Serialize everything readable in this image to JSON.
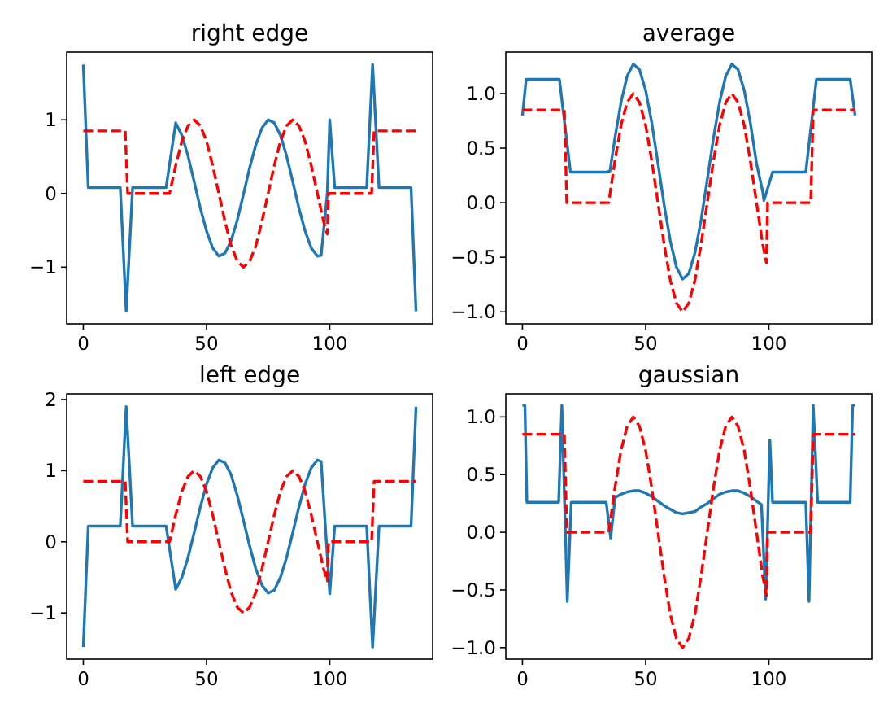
{
  "chart_data": [
    {
      "type": "line",
      "title": "right edge",
      "xlim": [
        -6.75,
        141.75
      ],
      "xticks": [
        0,
        50,
        100
      ],
      "ylim": [
        -1.77,
        1.92
      ],
      "yticks": [
        -1,
        0,
        1
      ],
      "series": [
        {
          "color": "#1f77b4",
          "line_style": "solid",
          "x": [
            0,
            2,
            15,
            17.4,
            20,
            33.6,
            37.5,
            40,
            42.5,
            45,
            47.5,
            50,
            52.5,
            55,
            57.5,
            60,
            62.5,
            65,
            67.5,
            70,
            72.5,
            75,
            77.5,
            80,
            82.5,
            85,
            87.5,
            90,
            92.5,
            95,
            96.5,
            99,
            100,
            102,
            115,
            117.4,
            120,
            133,
            135
          ],
          "values": [
            1.75,
            0.08,
            0.08,
            -1.6,
            0.08,
            0.08,
            0.96,
            0.79,
            0.51,
            0.16,
            -0.2,
            -0.51,
            -0.74,
            -0.85,
            -0.81,
            -0.64,
            -0.36,
            -0.01,
            0.35,
            0.66,
            0.89,
            1.0,
            0.96,
            0.79,
            0.51,
            0.16,
            -0.2,
            -0.51,
            -0.74,
            -0.85,
            -0.84,
            0.0,
            1.0,
            0.08,
            0.08,
            1.75,
            0.08,
            0.08,
            -1.6
          ]
        },
        {
          "color": "#ff0000",
          "line_style": "dashed",
          "x": [
            0,
            17,
            18,
            35,
            37.5,
            40,
            42.5,
            45,
            47.5,
            50,
            52.5,
            55,
            57.5,
            60,
            62.5,
            65,
            67.5,
            70,
            72.5,
            75,
            77.5,
            80,
            82.5,
            85,
            87.5,
            90,
            92.5,
            95,
            97.5,
            99,
            99.5,
            117,
            118,
            135
          ],
          "values": [
            0.85,
            0.85,
            0,
            0,
            0.38,
            0.71,
            0.92,
            1,
            0.92,
            0.71,
            0.38,
            0,
            -0.38,
            -0.71,
            -0.92,
            -1,
            -0.92,
            -0.71,
            -0.38,
            0,
            0.38,
            0.71,
            0.92,
            1,
            0.92,
            0.71,
            0.38,
            0,
            -0.38,
            -0.55,
            0,
            0,
            0.85,
            0.85
          ]
        }
      ]
    },
    {
      "type": "line",
      "title": "average",
      "xlim": [
        -6.75,
        141.75
      ],
      "xticks": [
        0,
        50,
        100
      ],
      "ylim": [
        -1.11,
        1.38
      ],
      "yticks": [
        {
          "value": -1,
          "label": "−1.0"
        },
        {
          "value": -0.5,
          "label": "−0.5"
        },
        {
          "value": 0,
          "label": "0.0"
        },
        {
          "value": 0.5,
          "label": "0.5"
        },
        {
          "value": 1,
          "label": "1.0"
        }
      ],
      "series": [
        {
          "color": "#1f77b4",
          "line_style": "solid",
          "x": [
            0,
            1.5,
            15,
            19.5,
            34,
            35.5,
            37.5,
            40,
            42.5,
            45,
            47.5,
            50,
            52.5,
            55,
            57.5,
            60,
            62.5,
            65,
            67.5,
            70,
            72.5,
            75,
            77.5,
            80,
            82.5,
            85,
            87.5,
            90,
            92.5,
            95,
            97.5,
            98,
            101.5,
            115,
            119.3,
            133,
            135
          ],
          "values": [
            0.8,
            1.13,
            1.13,
            0.28,
            0.28,
            0.29,
            0.59,
            0.92,
            1.16,
            1.27,
            1.22,
            1.03,
            0.73,
            0.36,
            -0.02,
            -0.35,
            -0.59,
            -0.7,
            -0.65,
            -0.46,
            -0.16,
            0.21,
            0.59,
            0.92,
            1.16,
            1.27,
            1.22,
            1.03,
            0.73,
            0.36,
            0.1,
            0.02,
            0.28,
            0.28,
            1.13,
            1.13,
            0.8
          ]
        },
        {
          "color": "#ff0000",
          "line_style": "dashed",
          "x": [
            0,
            17,
            18,
            35,
            37.5,
            40,
            42.5,
            45,
            47.5,
            50,
            52.5,
            55,
            57.5,
            60,
            62.5,
            65,
            67.5,
            70,
            72.5,
            75,
            77.5,
            80,
            82.5,
            85,
            87.5,
            90,
            92.5,
            95,
            97.5,
            99,
            99.5,
            117,
            118,
            135
          ],
          "values": [
            0.85,
            0.85,
            0,
            0,
            0.38,
            0.71,
            0.92,
            1,
            0.92,
            0.71,
            0.38,
            0,
            -0.38,
            -0.71,
            -0.92,
            -1,
            -0.92,
            -0.71,
            -0.38,
            0,
            0.38,
            0.71,
            0.92,
            1,
            0.92,
            0.71,
            0.38,
            0,
            -0.38,
            -0.55,
            0,
            0,
            0.85,
            0.85
          ]
        }
      ]
    },
    {
      "type": "line",
      "title": "left edge",
      "xlim": [
        -6.75,
        141.75
      ],
      "xticks": [
        0,
        50,
        100
      ],
      "ylim": [
        -1.65,
        2.08
      ],
      "yticks": [
        -1,
        0,
        1,
        2
      ],
      "series": [
        {
          "color": "#1f77b4",
          "line_style": "solid",
          "x": [
            0,
            2,
            15,
            17.4,
            20,
            33.6,
            37.5,
            40,
            42.5,
            45,
            47.5,
            50,
            52.5,
            55,
            57.5,
            60,
            62.5,
            65,
            67.5,
            70,
            72.5,
            75,
            77.5,
            80,
            82.5,
            85,
            87.5,
            90,
            92.5,
            95,
            96.5,
            100,
            102,
            115,
            117.4,
            120,
            133,
            135
          ],
          "values": [
            -1.48,
            0.22,
            0.22,
            1.9,
            0.22,
            0.22,
            -0.67,
            -0.5,
            -0.22,
            0.13,
            0.49,
            0.81,
            1.04,
            1.15,
            1.11,
            0.94,
            0.65,
            0.3,
            -0.06,
            -0.38,
            -0.61,
            -0.72,
            -0.68,
            -0.5,
            -0.22,
            0.13,
            0.49,
            0.81,
            1.04,
            1.15,
            1.13,
            -0.73,
            0.22,
            0.22,
            -1.48,
            0.22,
            0.22,
            1.9
          ]
        },
        {
          "color": "#ff0000",
          "line_style": "dashed",
          "x": [
            0,
            17,
            18,
            35,
            37.5,
            40,
            42.5,
            45,
            47.5,
            50,
            52.5,
            55,
            57.5,
            60,
            62.5,
            65,
            67.5,
            70,
            72.5,
            75,
            77.5,
            80,
            82.5,
            85,
            87.5,
            90,
            92.5,
            95,
            97.5,
            99,
            99.5,
            117,
            118,
            135
          ],
          "values": [
            0.85,
            0.85,
            0,
            0,
            0.38,
            0.71,
            0.92,
            1,
            0.92,
            0.71,
            0.38,
            0,
            -0.38,
            -0.71,
            -0.92,
            -1,
            -0.92,
            -0.71,
            -0.38,
            0,
            0.38,
            0.71,
            0.92,
            1,
            0.92,
            0.71,
            0.38,
            0,
            -0.38,
            -0.55,
            0,
            0,
            0.85,
            0.85
          ]
        }
      ]
    },
    {
      "type": "line",
      "title": "gaussian",
      "xlim": [
        -6.75,
        141.75
      ],
      "xticks": [
        0,
        50,
        100
      ],
      "ylim": [
        -1.1,
        1.2
      ],
      "yticks": [
        {
          "value": -1,
          "label": "−1.0"
        },
        {
          "value": -0.5,
          "label": "−0.5"
        },
        {
          "value": 0,
          "label": "0.0"
        },
        {
          "value": 0.5,
          "label": "0.5"
        },
        {
          "value": 1,
          "label": "1.0"
        }
      ],
      "series": [
        {
          "color": "#1f77b4",
          "line_style": "solid",
          "x": [
            0,
            1,
            1.8,
            14.7,
            16,
            18.2,
            19.8,
            34,
            35.8,
            37.6,
            40,
            42.5,
            45,
            47.5,
            50,
            52.5,
            55,
            57.5,
            60,
            62.5,
            65,
            67.5,
            70,
            72.5,
            75,
            77.5,
            80,
            82.5,
            85,
            87.5,
            90,
            92.5,
            95,
            97,
            98.7,
            100.4,
            101.5,
            115,
            116.3,
            118,
            119.8,
            133,
            134,
            135
          ],
          "values": [
            1.1,
            1.1,
            0.26,
            0.26,
            1.1,
            -0.6,
            0.26,
            0.26,
            -0.05,
            0.3,
            0.33,
            0.35,
            0.36,
            0.36,
            0.34,
            0.31,
            0.27,
            0.23,
            0.2,
            0.17,
            0.16,
            0.17,
            0.18,
            0.22,
            0.25,
            0.29,
            0.33,
            0.35,
            0.36,
            0.36,
            0.34,
            0.31,
            0.27,
            0.24,
            -0.58,
            0.8,
            0.26,
            0.26,
            -0.6,
            1.1,
            0.26,
            0.26,
            1.1,
            1.1
          ]
        },
        {
          "color": "#ff0000",
          "line_style": "dashed",
          "x": [
            0,
            17,
            18,
            35,
            37.5,
            40,
            42.5,
            45,
            47.5,
            50,
            52.5,
            55,
            57.5,
            60,
            62.5,
            65,
            67.5,
            70,
            72.5,
            75,
            77.5,
            80,
            82.5,
            85,
            87.5,
            90,
            92.5,
            95,
            97.5,
            99,
            99.5,
            117,
            118,
            135
          ],
          "values": [
            0.85,
            0.85,
            0,
            0,
            0.38,
            0.71,
            0.92,
            1,
            0.92,
            0.71,
            0.38,
            0,
            -0.38,
            -0.71,
            -0.92,
            -1,
            -0.92,
            -0.71,
            -0.38,
            0,
            0.38,
            0.71,
            0.92,
            1,
            0.92,
            0.71,
            0.38,
            0,
            -0.38,
            -0.55,
            0,
            0,
            0.85,
            0.85
          ]
        }
      ]
    }
  ]
}
